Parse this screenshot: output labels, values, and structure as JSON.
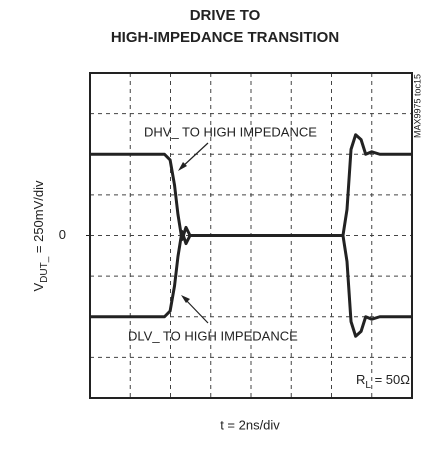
{
  "chart_data": {
    "type": "line",
    "title": [
      "DRIVE TO",
      "HIGH-IMPEDANCE TRANSITION"
    ],
    "ylabel": {
      "main": "V",
      "sub": "DUT_",
      "rest": " = 250mV/div"
    },
    "xlabel": "t = 2ns/div",
    "side_label": "MAX9975 toc15",
    "annotations": [
      "DHV_ TO HIGH IMPEDANCE",
      "DLV_ TO HIGH IMPEDANCE"
    ],
    "load_label": {
      "main": "R",
      "sub": "L",
      "rest": " = 50Ω"
    },
    "xlim": [
      0,
      16
    ],
    "ylim": [
      -1000,
      1000
    ],
    "yticks": [
      0
    ],
    "xgrid": [
      2,
      4,
      6,
      8,
      10,
      12,
      14
    ],
    "ygrid": [
      -750,
      -500,
      -250,
      0,
      250,
      500,
      750
    ],
    "series": [
      {
        "color": "#222222",
        "x": [
          0,
          3.7,
          3.98,
          4.2,
          4.37,
          4.57,
          4.77,
          4.97,
          12.57,
          12.77,
          12.97,
          13.2,
          13.47,
          13.7,
          14.0,
          14.4,
          16
        ],
        "values": [
          500,
          500,
          465,
          310,
          130,
          -25,
          50,
          0,
          0,
          160,
          530,
          620,
          590,
          500,
          515,
          500,
          500
        ]
      },
      {
        "color": "#222222",
        "x": [
          0,
          3.7,
          3.98,
          4.2,
          4.37,
          4.57,
          4.77,
          4.97,
          12.57,
          12.77,
          12.97,
          13.2,
          13.47,
          13.7,
          14.0,
          14.4,
          16
        ],
        "values": [
          -500,
          -500,
          -465,
          -310,
          -130,
          25,
          -50,
          0,
          0,
          -160,
          -530,
          -620,
          -590,
          -500,
          -515,
          -500,
          -500
        ]
      }
    ]
  }
}
